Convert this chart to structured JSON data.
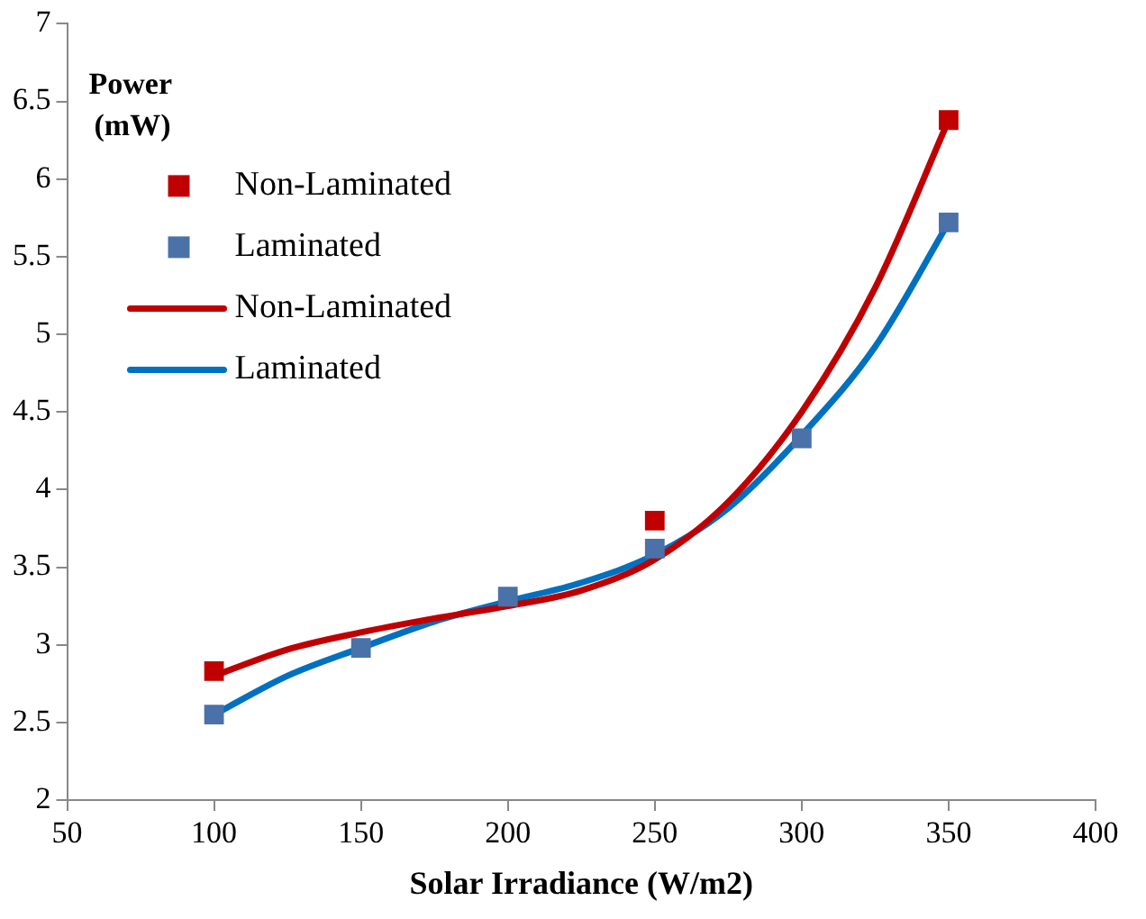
{
  "chart_data": {
    "type": "scatter",
    "xlabel": "Solar Irradiance (W/m2)",
    "ylabel": "Power\n(mW)",
    "xlim": [
      50,
      400
    ],
    "xticks": [
      50,
      100,
      150,
      200,
      250,
      300,
      350,
      400
    ],
    "ylim": [
      2,
      7
    ],
    "yticks": [
      2,
      2.5,
      3,
      3.5,
      4,
      4.5,
      5,
      5.5,
      6,
      6.5,
      7
    ],
    "grid": false,
    "legend": "left",
    "marker": "square",
    "series": [
      {
        "name": "Non-Laminated",
        "color": "#c00000",
        "x": [
          100,
          250,
          350
        ],
        "values": [
          2.83,
          3.8,
          6.38
        ]
      },
      {
        "name": "Laminated",
        "color": "#4a72a8",
        "x": [
          100,
          150,
          200,
          250,
          300,
          350
        ],
        "values": [
          2.55,
          2.98,
          3.31,
          3.62,
          4.33,
          5.72
        ]
      },
      {
        "name": "Non-Laminated",
        "type": "line",
        "marker": "none",
        "color": "#c00000",
        "x": [
          100,
          125,
          150,
          175,
          200,
          225,
          250,
          275,
          300,
          325,
          350
        ],
        "values": [
          2.8,
          2.97,
          3.08,
          3.17,
          3.25,
          3.35,
          3.55,
          3.92,
          4.5,
          5.3,
          6.38
        ]
      },
      {
        "name": "Laminated",
        "type": "line",
        "marker": "none",
        "color": "#0070c0",
        "x": [
          100,
          125,
          150,
          175,
          200,
          225,
          250,
          275,
          300,
          325,
          350
        ],
        "values": [
          2.55,
          2.8,
          2.98,
          3.15,
          3.28,
          3.4,
          3.58,
          3.88,
          4.35,
          4.92,
          5.72
        ]
      }
    ]
  }
}
